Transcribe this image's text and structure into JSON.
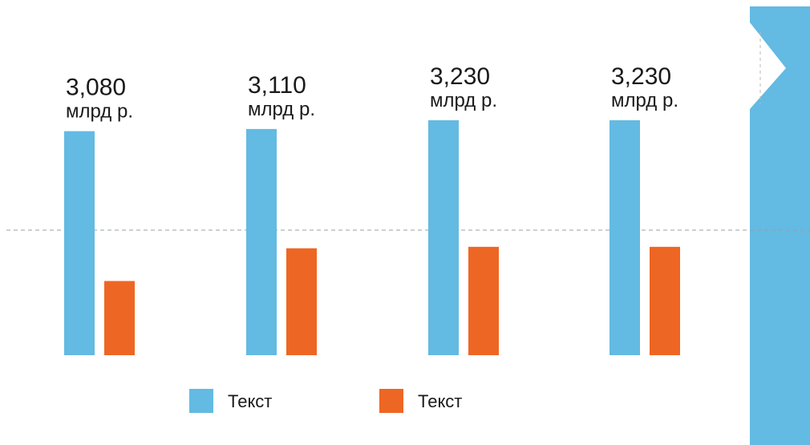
{
  "chart_data": {
    "type": "bar",
    "categories": [
      "",
      "",
      "",
      ""
    ],
    "value_labels": [
      {
        "amount": "3,080",
        "unit": "млрд р."
      },
      {
        "amount": "3,110",
        "unit": "млрд р."
      },
      {
        "amount": "3,230",
        "unit": "млрд р."
      },
      {
        "amount": "3,230",
        "unit": "млрд р."
      }
    ],
    "series": [
      {
        "name": "Текст",
        "color": "#63bae2",
        "values": [
          3.08,
          3.11,
          3.23,
          3.23
        ]
      },
      {
        "name": "Текст",
        "color": "#ee6623",
        "values": [
          1.02,
          1.47,
          1.49,
          1.49
        ]
      }
    ],
    "ylim": [
      0,
      3.23
    ],
    "reference_line": 1.72,
    "grid": false,
    "legend_position": "bottom",
    "title": "",
    "xlabel": "",
    "ylabel": ""
  },
  "side_panel": {
    "color": "#63bae2"
  }
}
